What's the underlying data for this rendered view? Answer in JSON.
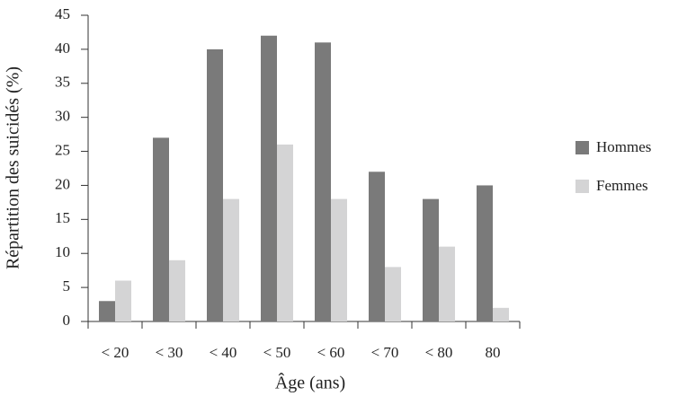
{
  "chart_data": {
    "type": "bar",
    "ylabel": "Répartition des suicidés (%)",
    "xlabel": "Âge (ans)",
    "categories": [
      "< 20",
      "< 30",
      "< 40",
      "< 50",
      "< 60",
      "< 70",
      "< 80",
      "80"
    ],
    "series": [
      {
        "name": "Hommes",
        "color": "#7a7a7a",
        "values": [
          3,
          27,
          40,
          42,
          41,
          22,
          18,
          20
        ]
      },
      {
        "name": "Femmes",
        "color": "#d4d4d5",
        "values": [
          6,
          9,
          18,
          26,
          18,
          8,
          11,
          2
        ]
      }
    ],
    "ylim": [
      0,
      45
    ],
    "yticks": [
      0,
      5,
      10,
      15,
      20,
      25,
      30,
      35,
      40,
      45
    ],
    "legend": "right"
  }
}
